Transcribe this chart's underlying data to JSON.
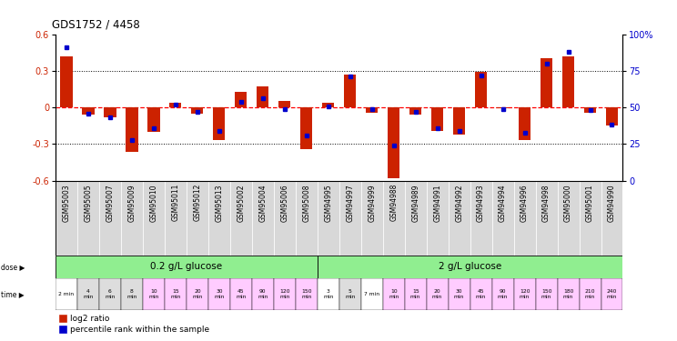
{
  "title": "GDS1752 / 4458",
  "samples": [
    "GSM95003",
    "GSM95005",
    "GSM95007",
    "GSM95009",
    "GSM95010",
    "GSM95011",
    "GSM95012",
    "GSM95013",
    "GSM95002",
    "GSM95004",
    "GSM95006",
    "GSM95008",
    "GSM94995",
    "GSM94997",
    "GSM94999",
    "GSM94988",
    "GSM94989",
    "GSM94991",
    "GSM94992",
    "GSM94993",
    "GSM94994",
    "GSM94996",
    "GSM94998",
    "GSM95000",
    "GSM95001",
    "GSM94990"
  ],
  "log2_ratio": [
    0.42,
    -0.06,
    -0.08,
    -0.36,
    -0.2,
    0.04,
    -0.05,
    -0.27,
    0.13,
    0.17,
    0.05,
    -0.34,
    0.04,
    0.27,
    -0.04,
    -0.58,
    -0.06,
    -0.19,
    -0.22,
    0.29,
    -0.01,
    -0.27,
    0.4,
    0.42,
    -0.04,
    -0.15
  ],
  "percentile": [
    91,
    46,
    43,
    28,
    36,
    52,
    47,
    34,
    54,
    56,
    49,
    31,
    51,
    71,
    49,
    24,
    47,
    36,
    34,
    72,
    49,
    33,
    80,
    88,
    48,
    38
  ],
  "bar_color_red": "#cc2200",
  "bar_color_blue": "#0000cc",
  "ylim": [
    -0.6,
    0.6
  ],
  "y2lim": [
    0,
    100
  ],
  "yticks_left": [
    -0.6,
    -0.3,
    0.0,
    0.3,
    0.6
  ],
  "yticks_right": [
    0,
    25,
    50,
    75,
    100
  ],
  "dose1_label": "0.2 g/L glucose",
  "dose2_label": "2 g/L glucose",
  "dose1_count": 12,
  "dose2_count": 14,
  "dose_color": "#90ee90",
  "time_labels": [
    "2 min",
    "4\nmin",
    "6\nmin",
    "8\nmin",
    "10\nmin",
    "15\nmin",
    "20\nmin",
    "30\nmin",
    "45\nmin",
    "90\nmin",
    "120\nmin",
    "150\nmin",
    "3\nmin",
    "5\nmin",
    "7 min",
    "10\nmin",
    "15\nmin",
    "20\nmin",
    "30\nmin",
    "45\nmin",
    "90\nmin",
    "120\nmin",
    "150\nmin",
    "180\nmin",
    "210\nmin",
    "240\nmin"
  ],
  "time_bg": [
    "#ffffff",
    "#dddddd",
    "#dddddd",
    "#dddddd",
    "#ffccff",
    "#ffccff",
    "#ffccff",
    "#ffccff",
    "#ffccff",
    "#ffccff",
    "#ffccff",
    "#ffccff",
    "#ffffff",
    "#dddddd",
    "#ffffff",
    "#ffccff",
    "#ffccff",
    "#ffccff",
    "#ffccff",
    "#ffccff",
    "#ffccff",
    "#ffccff",
    "#ffccff",
    "#ffccff",
    "#ffccff",
    "#ffccff"
  ],
  "legend_items": [
    "log2 ratio",
    "percentile rank within the sample"
  ],
  "sample_bg": "#d8d8d8"
}
